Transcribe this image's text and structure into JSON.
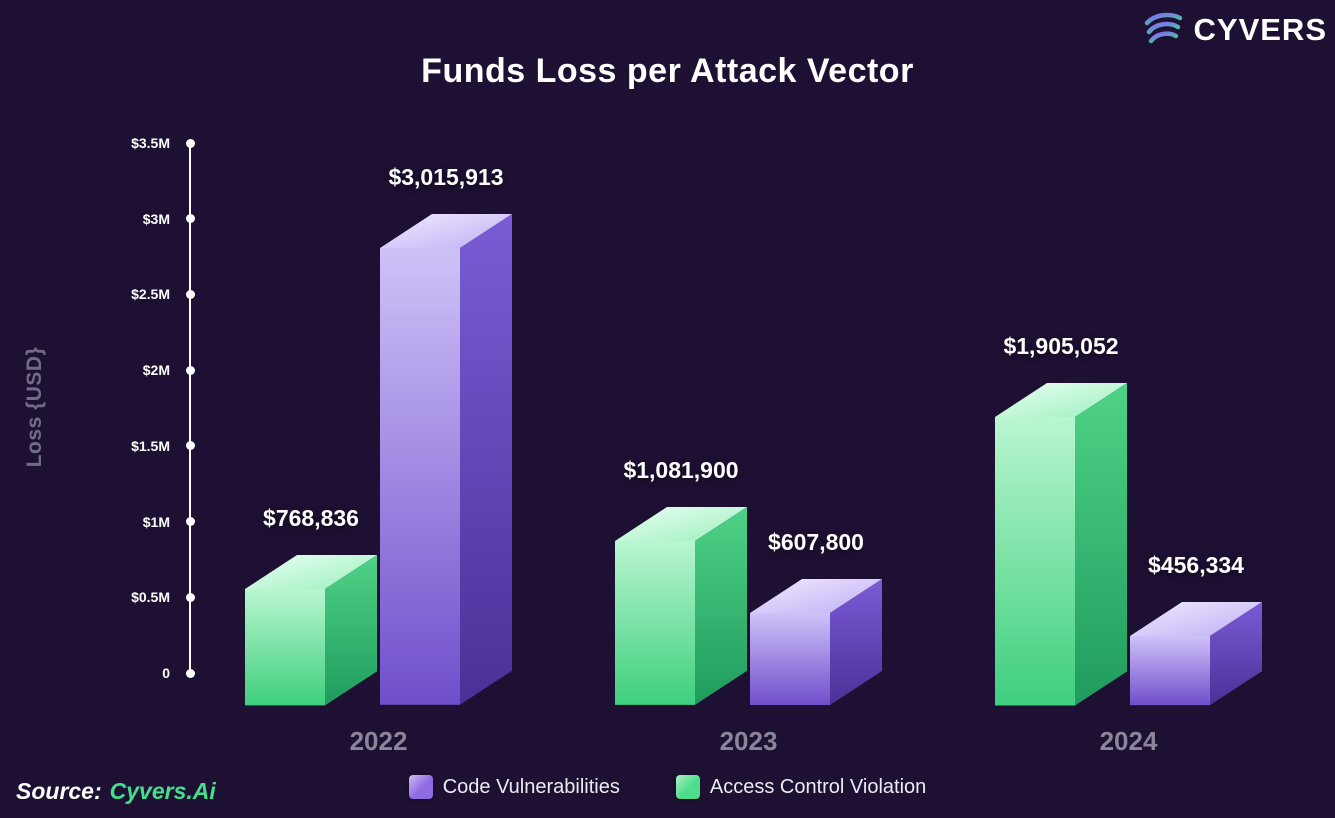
{
  "header": {
    "title": "Funds Loss per Attack Vector",
    "brand": "CYVERS"
  },
  "y_axis": {
    "label": "Loss {USD}",
    "ticks": [
      "$3.5M",
      "$3M",
      "$2.5M",
      "$2M",
      "$1.5M",
      "$1M",
      "$0.5M",
      "0"
    ]
  },
  "chart_data": {
    "type": "bar",
    "title": "Funds Loss per Attack Vector",
    "categories": [
      "2022",
      "2023",
      "2024"
    ],
    "series": [
      {
        "name": "Access Control Violation",
        "color": "#4edd8a",
        "values": [
          768836,
          1081900,
          1905052
        ],
        "value_labels": [
          "$768,836",
          "$1,081,900",
          "$1,905,052"
        ]
      },
      {
        "name": "Code Vulnerabilities",
        "color": "#8f6ce4",
        "values": [
          3015913,
          607800,
          456334
        ],
        "value_labels": [
          "$3,015,913",
          "$607,800",
          "$456,334"
        ]
      }
    ],
    "xlabel": "",
    "ylabel": "Loss {USD}",
    "ylim": [
      0,
      3500000
    ],
    "y_tick_step": 500000,
    "grid": false,
    "legend_position": "bottom",
    "style": "3d-isometric-bars"
  },
  "legend": [
    {
      "label": "Code Vulnerabilities",
      "color": "#8f6ce4"
    },
    {
      "label": "Access Control Violation",
      "color": "#4edd8a"
    }
  ],
  "source": {
    "prefix": "Source:",
    "name": "Cyvers.Ai"
  },
  "colors": {
    "background": "#1e1033",
    "text": "#ffffff",
    "muted_label": "#8a8599",
    "axis_title": "#716c85",
    "accent_green": "#4edd8a",
    "accent_purple": "#8f6ce4",
    "source_green": "#43e08c"
  }
}
